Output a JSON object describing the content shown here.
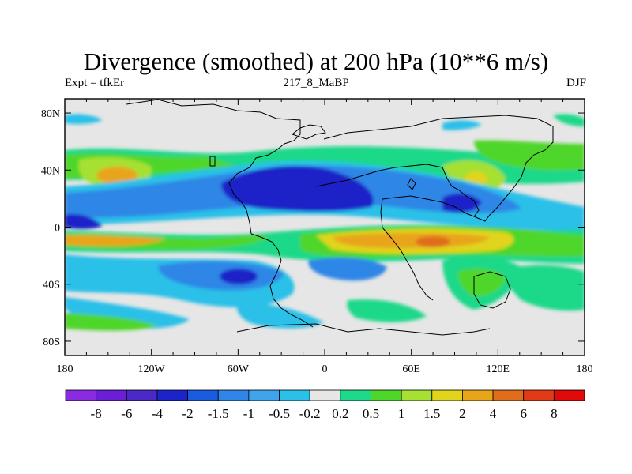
{
  "title": "Divergence (smoothed) at 200 hPa (10**6 m/s)",
  "subtitle_left": "Expt = tfkEr",
  "subtitle_center": "217_8_MaBP",
  "subtitle_right": "DJF",
  "lon_ticks": [
    "180",
    "120W",
    "60W",
    "0",
    "60E",
    "120E",
    "180"
  ],
  "lat_ticks": [
    "80N",
    "40N",
    "0",
    "40S",
    "80S"
  ],
  "colorbar": {
    "colors": [
      "#8a2be2",
      "#6a1fd6",
      "#4b28c8",
      "#1c23c8",
      "#1a5ce0",
      "#2f86e6",
      "#3fa4ec",
      "#2cc0e8",
      "#e6e6e6",
      "#1fd889",
      "#4fd62a",
      "#a6e032",
      "#e0d41c",
      "#e8a51a",
      "#e06d1c",
      "#e03a17",
      "#e00a0a"
    ],
    "labels": [
      "-8",
      "-6",
      "-4",
      "-2",
      "-1.5",
      "-1",
      "-0.5",
      "-0.2",
      "0.2",
      "0.5",
      "1",
      "1.5",
      "2",
      "4",
      "6",
      "8"
    ]
  },
  "field_colors": {
    "background": "#e6e6e6",
    "strong_neg": "#1c23c8",
    "mid_neg": "#2f86e6",
    "weak_neg": "#2cc0e8",
    "weak_pos": "#1fd889",
    "mid_pos": "#4fd62a",
    "pos_15": "#a6e032",
    "pos_2": "#e0d41c",
    "strong_pos": "#e8a51a",
    "very_strong_pos": "#e06d1c"
  }
}
